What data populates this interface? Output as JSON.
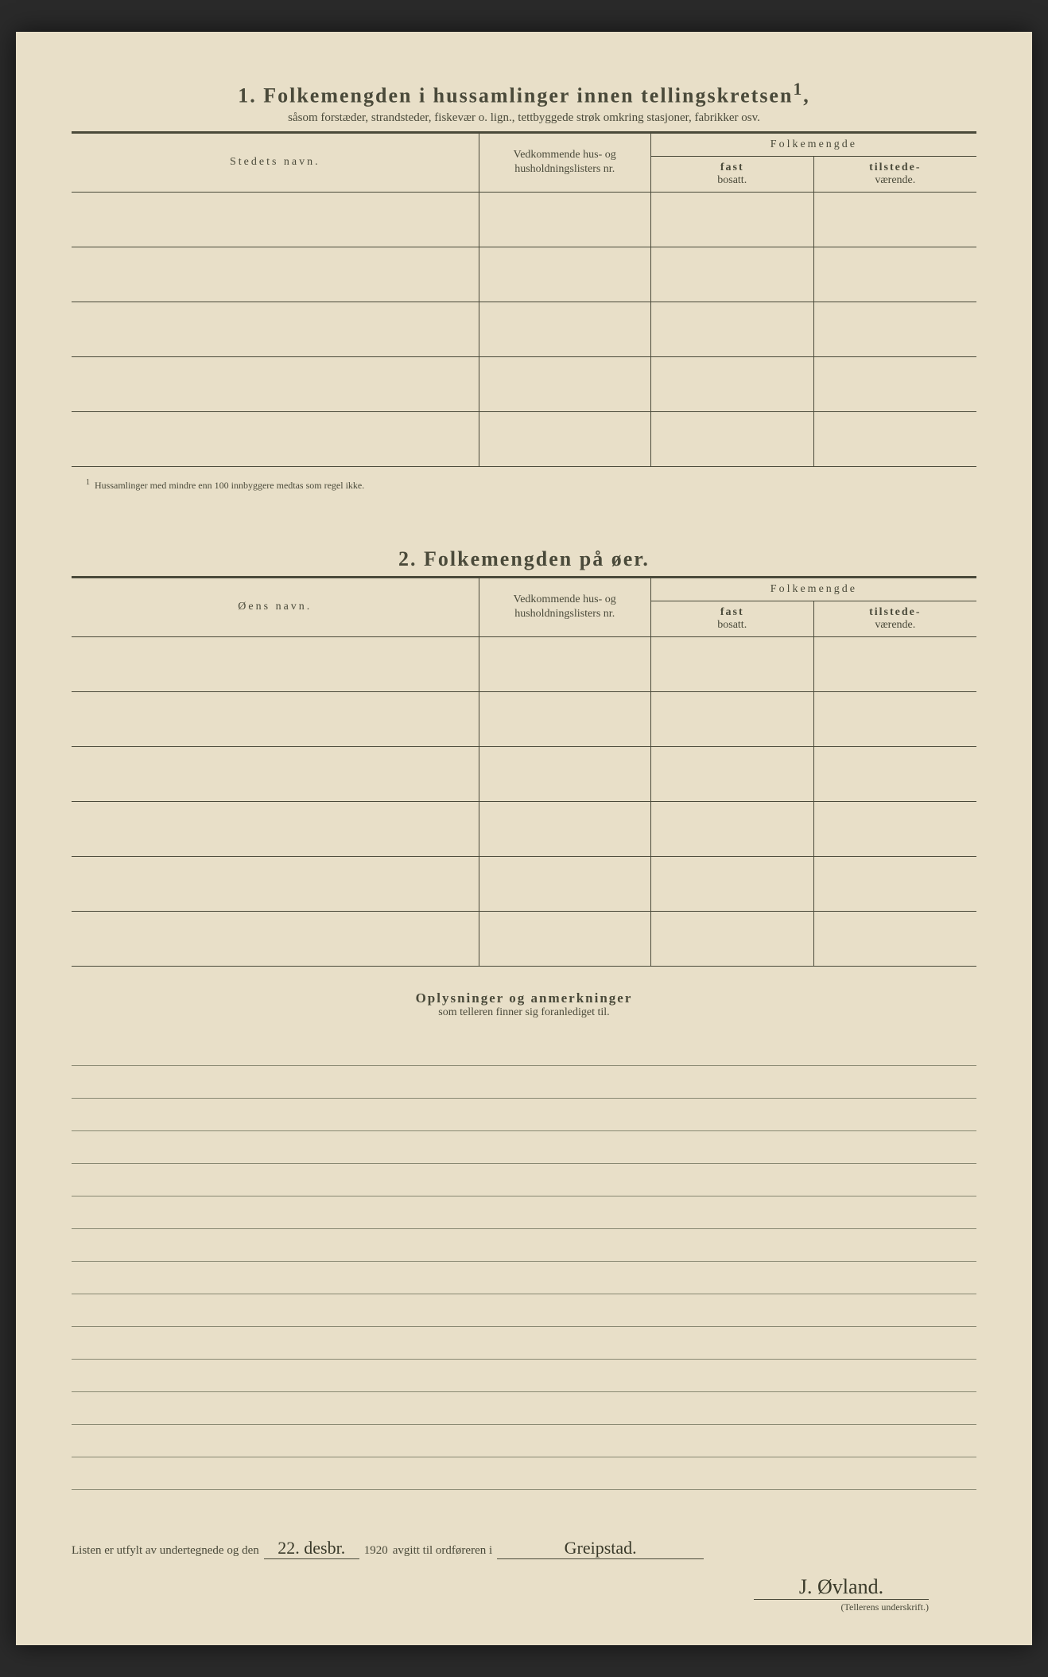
{
  "section1": {
    "number": "1.",
    "title": "Folkemengden i hussamlinger innen tellingskretsen",
    "sup": "1",
    "comma": ",",
    "subtitle": "såsom forstæder, strandsteder, fiskevær o. lign., tettbyggede strøk omkring stasjoner, fabrikker osv.",
    "col_name": "Stedets navn.",
    "col_ref": "Vedkommende hus- og husholdningslisters nr.",
    "col_pop_group": "Folkemengde",
    "col_fast_b": "fast",
    "col_fast": "bosatt.",
    "col_til_b": "tilstede-",
    "col_til": "værende.",
    "rows": 5,
    "footnote_marker": "1",
    "footnote": "Hussamlinger med mindre enn 100 innbyggere medtas som regel ikke."
  },
  "section2": {
    "number": "2.",
    "title": "Folkemengden på øer.",
    "col_name": "Øens navn.",
    "col_ref": "Vedkommende hus- og husholdningslisters nr.",
    "col_pop_group": "Folkemengde",
    "col_fast_b": "fast",
    "col_fast": "bosatt.",
    "col_til_b": "tilstede-",
    "col_til": "værende.",
    "rows": 6
  },
  "remarks": {
    "title": "Oplysninger og anmerkninger",
    "subtitle": "som telleren finner sig foranlediget til.",
    "line_count": 14
  },
  "footer": {
    "text1": "Listen er utfylt av undertegnede og den",
    "date_fill": "22. desbr.",
    "year": "1920",
    "text2": "avgitt til ordføreren i",
    "place_fill": "Greipstad.",
    "signature": "J. Øvland.",
    "sig_caption": "(Tellerens underskrift.)"
  },
  "colors": {
    "paper": "#e8dfc8",
    "ink": "#4a4a3a",
    "rule": "#888872",
    "background": "#2a2a2a"
  }
}
